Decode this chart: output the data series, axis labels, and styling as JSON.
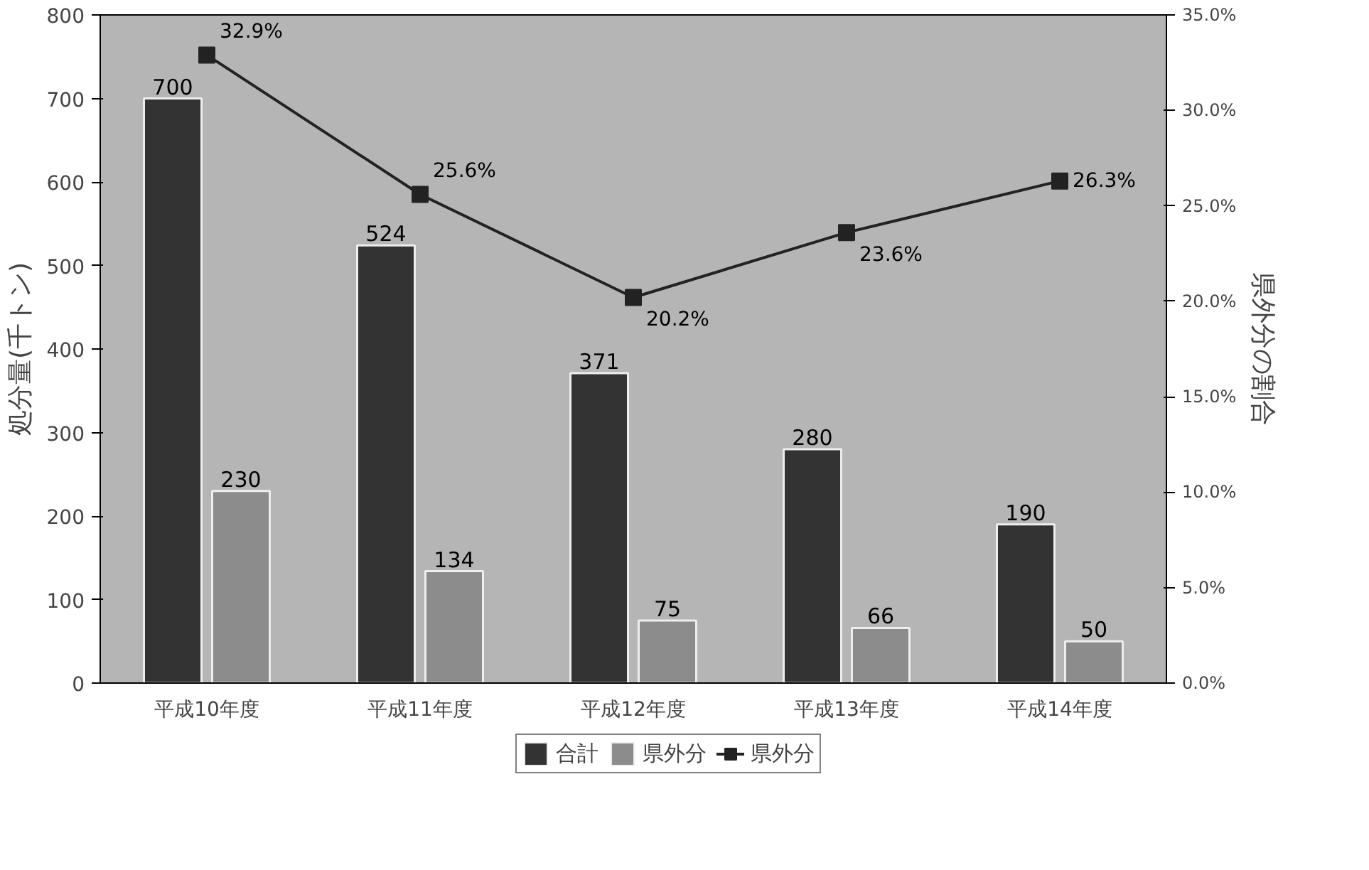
{
  "chart_data": {
    "type": "bar",
    "ylabel": "処分量(千トン)",
    "y2label": "県外分の割合",
    "categories": [
      "平成10年度",
      "平成11年度",
      "平成12年度",
      "平成13年度",
      "平成14年度"
    ],
    "series": [
      {
        "name": "合計",
        "color": "#333333",
        "values": [
          700,
          524,
          371,
          280,
          190
        ],
        "value_labels": [
          "700",
          "524",
          "371",
          "280",
          "190"
        ]
      },
      {
        "name": "県外分",
        "color": "#8c8c8c",
        "values": [
          230,
          134,
          75,
          66,
          50
        ],
        "value_labels": [
          "230",
          "134",
          "75",
          "66",
          "50"
        ]
      },
      {
        "name": "県外分",
        "type": "line",
        "axis": "y2",
        "color": "#222222",
        "marker": "square",
        "values": [
          32.9,
          25.6,
          20.2,
          23.6,
          26.3
        ],
        "value_labels": [
          "32.9%",
          "25.6%",
          "20.2%",
          "23.6%",
          "26.3%"
        ]
      }
    ],
    "ylim": [
      0,
      800
    ],
    "yticks": [
      0,
      100,
      200,
      300,
      400,
      500,
      600,
      700,
      800
    ],
    "y2lim": [
      0,
      35
    ],
    "y2ticks": [
      {
        "value": 0,
        "label": "0.0%"
      },
      {
        "value": 5,
        "label": "5.0%"
      },
      {
        "value": 10,
        "label": "10.0%"
      },
      {
        "value": 15,
        "label": "15.0%"
      },
      {
        "value": 20,
        "label": "20.0%"
      },
      {
        "value": 25,
        "label": "25.0%"
      },
      {
        "value": 30,
        "label": "30.0%"
      },
      {
        "value": 35,
        "label": "35.0%"
      }
    ],
    "grid": false,
    "legend": "bottom"
  }
}
